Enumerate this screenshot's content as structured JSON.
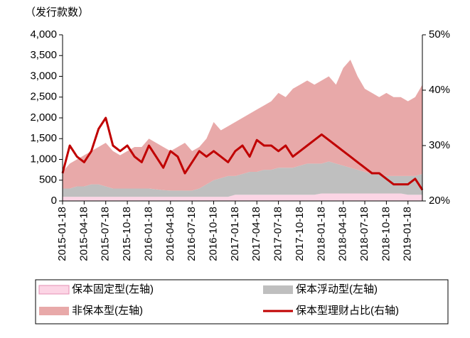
{
  "chart_data": {
    "type": "stacked_area_line",
    "y_axis_label": "（发行款数）",
    "categories": [
      "2015-01-18",
      null,
      null,
      "2015-04-18",
      null,
      null,
      "2015-07-18",
      null,
      null,
      "2015-10-18",
      null,
      null,
      "2016-01-18",
      null,
      null,
      "2016-04-18",
      null,
      null,
      "2016-07-18",
      null,
      null,
      "2016-10-18",
      null,
      null,
      "2017-01-18",
      null,
      null,
      "2017-04-18",
      null,
      null,
      "2017-07-18",
      null,
      null,
      "2017-10-18",
      null,
      null,
      "2018-01-18",
      null,
      null,
      "2018-04-18",
      null,
      null,
      "2018-07-18",
      null,
      null,
      "2018-10-18",
      null,
      null,
      "2019-01-18",
      null,
      null
    ],
    "series": [
      {
        "name": "保本固定型(左轴)",
        "color": "#fcd5e5",
        "values": [
          100,
          100,
          100,
          100,
          100,
          100,
          100,
          100,
          100,
          100,
          100,
          100,
          100,
          100,
          100,
          100,
          100,
          100,
          100,
          100,
          100,
          100,
          100,
          100,
          150,
          150,
          150,
          150,
          150,
          150,
          150,
          150,
          150,
          150,
          150,
          150,
          180,
          180,
          180,
          180,
          180,
          180,
          180,
          180,
          180,
          180,
          180,
          180,
          150,
          150,
          150
        ]
      },
      {
        "name": "保本浮动型(左轴)",
        "color": "#bfbfbf",
        "values": [
          200,
          200,
          250,
          250,
          300,
          300,
          250,
          200,
          200,
          200,
          200,
          200,
          200,
          180,
          160,
          150,
          150,
          150,
          150,
          200,
          300,
          400,
          450,
          500,
          450,
          500,
          550,
          550,
          600,
          600,
          650,
          650,
          650,
          700,
          750,
          750,
          720,
          770,
          720,
          670,
          620,
          570,
          520,
          470,
          470,
          420,
          420,
          420,
          450,
          450,
          500
        ]
      },
      {
        "name": "非保本型(左轴)",
        "color": "#e8a9a9",
        "values": [
          400,
          600,
          650,
          750,
          800,
          900,
          1050,
          900,
          800,
          900,
          1000,
          1000,
          1200,
          1120,
          1040,
          950,
          1050,
          1150,
          950,
          1000,
          1100,
          1400,
          1150,
          1200,
          1300,
          1350,
          1400,
          1500,
          1550,
          1650,
          1800,
          1700,
          1900,
          1950,
          2000,
          1900,
          2000,
          2050,
          1900,
          2350,
          2600,
          2250,
          2000,
          1950,
          1850,
          2000,
          1900,
          1900,
          1800,
          1900,
          2150
        ]
      },
      {
        "name": "保本型理财占比(右轴)",
        "color": "#c00000",
        "axis": "y2",
        "values": [
          25,
          30,
          28,
          27,
          29,
          33,
          35,
          30,
          29,
          30,
          28,
          27,
          30,
          28,
          26,
          29,
          28,
          25,
          27,
          29,
          28,
          29,
          28,
          27,
          29,
          30,
          28,
          31,
          30,
          30,
          29,
          30,
          28,
          29,
          30,
          31,
          32,
          31,
          30,
          29,
          28,
          27,
          26,
          25,
          25,
          24,
          23,
          23,
          23,
          24,
          22
        ]
      }
    ],
    "ylim": [
      0,
      4000
    ],
    "yticks": [
      0,
      500,
      {
        "value": 1000,
        "label": "1,000"
      },
      {
        "value": 1500,
        "label": "1,500"
      },
      {
        "value": 2000,
        "label": "2,000"
      },
      {
        "value": 2500,
        "label": "2,500"
      },
      {
        "value": 3000,
        "label": "3,000"
      },
      {
        "value": 3500,
        "label": "3,500"
      },
      {
        "value": 4000,
        "label": "4,000"
      }
    ],
    "y2lim": [
      20,
      50
    ],
    "y2ticks": [
      {
        "value": 20,
        "label": "20%"
      },
      {
        "value": 30,
        "label": "30%"
      },
      {
        "value": 40,
        "label": "40%"
      },
      {
        "value": 50,
        "label": "50%"
      }
    ],
    "legend": "bottom"
  }
}
